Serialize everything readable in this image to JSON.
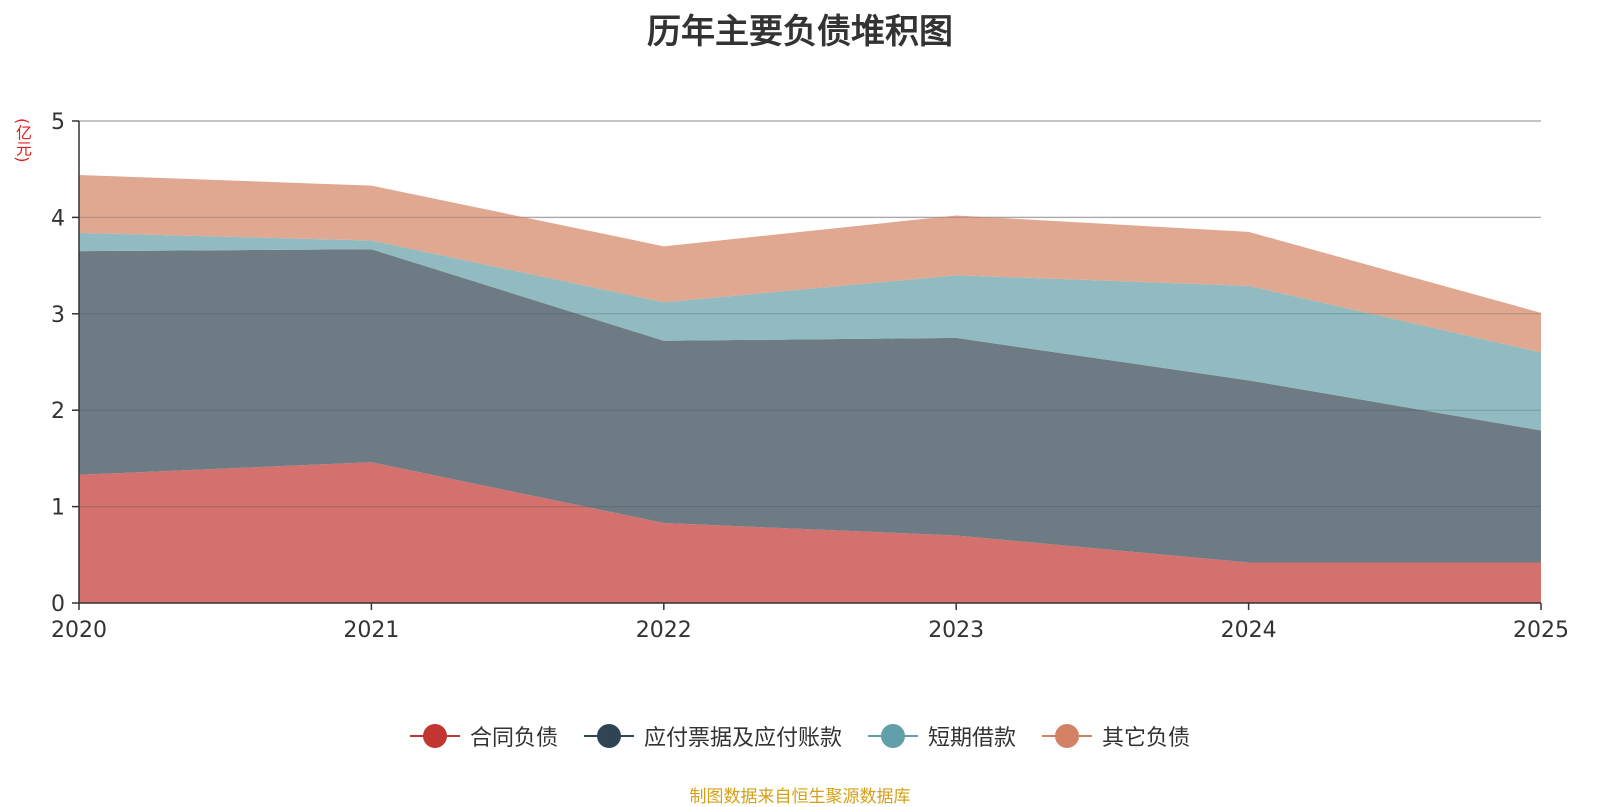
{
  "title": "历年主要负债堆积图",
  "unit": "(亿元)",
  "source": "制图数据来自恒生聚源数据库",
  "chart_data": {
    "type": "area",
    "stacked": true,
    "title": "历年主要负债堆积图",
    "ylabel": "(亿元)",
    "categories": [
      "2020",
      "2021",
      "2022",
      "2023",
      "2024",
      "2025"
    ],
    "ylim": [
      0,
      5
    ],
    "yticks": [
      0,
      1,
      2,
      3,
      4,
      5
    ],
    "grid": true,
    "legend_position": "bottom",
    "series": [
      {
        "name": "合同负债",
        "color": "#c23531",
        "fill": "#d4706d",
        "values": [
          1.33,
          1.46,
          0.83,
          0.7,
          0.42,
          0.42
        ]
      },
      {
        "name": "应付票据及应付账款",
        "color": "#2f4554",
        "fill": "#6e7b85",
        "values": [
          2.32,
          2.21,
          1.89,
          2.05,
          1.89,
          1.37
        ]
      },
      {
        "name": "短期借款",
        "color": "#61a0a8",
        "fill": "#91bbc0",
        "values": [
          0.19,
          0.09,
          0.4,
          0.65,
          0.98,
          0.81
        ]
      },
      {
        "name": "其它负债",
        "color": "#d48265",
        "fill": "#e0a791",
        "values": [
          0.6,
          0.57,
          0.58,
          0.62,
          0.56,
          0.41
        ]
      }
    ]
  }
}
